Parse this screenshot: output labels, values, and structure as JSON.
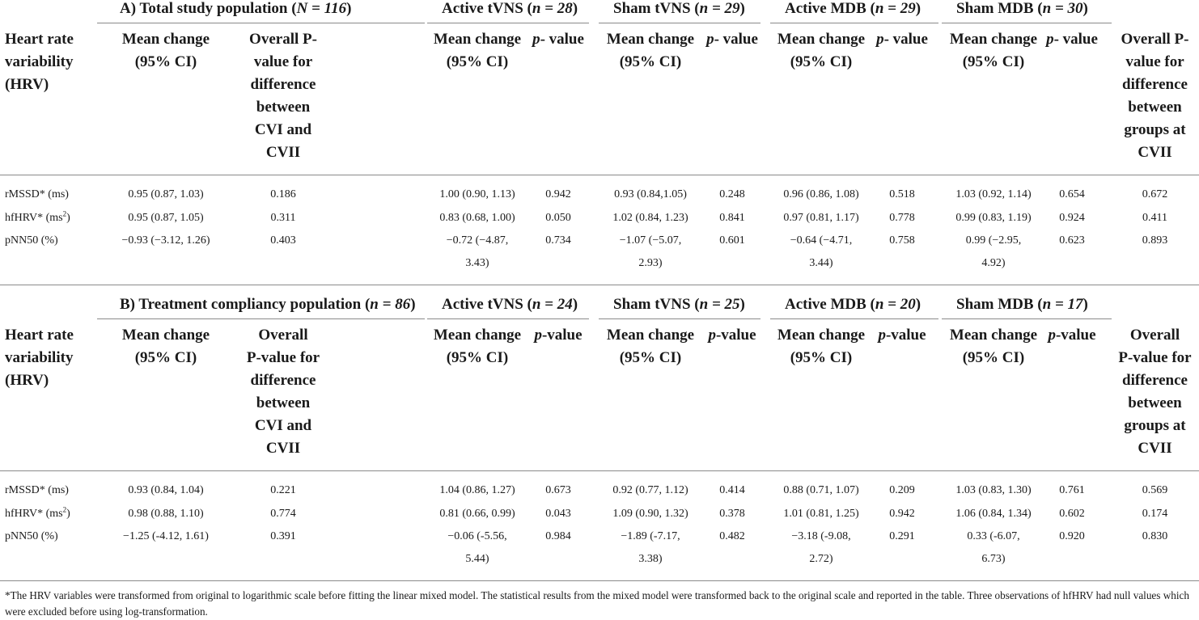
{
  "sectionA": {
    "title": "A) Total study population (",
    "title_n": "N = 116",
    "groups": [
      {
        "name": "Active tVNS (",
        "n": "n = 28"
      },
      {
        "name": "Sham tVNS (",
        "n": "n = 29"
      },
      {
        "name": "Active MDB (",
        "n": "n = 29"
      },
      {
        "name": "Sham MDB (",
        "n": "n = 30"
      }
    ],
    "header": {
      "hrv": [
        "Heart rate",
        "variability",
        "(HRV)"
      ],
      "mean_change": [
        "Mean change",
        "(95% CI)"
      ],
      "overall_p": [
        "Overall P-",
        "value for",
        "difference",
        "between",
        "CVI and",
        "CVII"
      ],
      "p_label": "p- value",
      "final": [
        "Overall P-",
        "value for",
        "difference",
        "between",
        "groups at",
        "CVII"
      ]
    },
    "rows": [
      {
        "label": "rMSSD* (ms)",
        "total": "0.95 (0.87, 1.03)",
        "total_p": "0.186",
        "g": [
          [
            "1.00 (0.90, 1.13)",
            "0.942"
          ],
          [
            "0.93 (0.84,1.05)",
            "0.248"
          ],
          [
            "0.96 (0.86, 1.08)",
            "0.518"
          ],
          [
            "1.03 (0.92, 1.14)",
            "0.654"
          ]
        ],
        "overall": "0.672"
      },
      {
        "label": "hfHRV* (ms",
        "total": "0.95 (0.87, 1.05)",
        "total_p": "0.311",
        "g": [
          [
            "0.83 (0.68, 1.00)",
            "0.050"
          ],
          [
            "1.02 (0.84, 1.23)",
            "0.841"
          ],
          [
            "0.97 (0.81, 1.17)",
            "0.778"
          ],
          [
            "0.99 (0.83, 1.19)",
            "0.924"
          ]
        ],
        "overall": "0.411"
      },
      {
        "label": "pNN50 (%)",
        "total": "−0.93 (−3.12, 1.26)",
        "total_p": "0.403",
        "g": [
          [
            "−0.72 (−4.87,",
            "3.43)",
            "0.734"
          ],
          [
            "−1.07 (−5.07,",
            "2.93)",
            "0.601"
          ],
          [
            "−0.64 (−4.71,",
            "3.44)",
            "0.758"
          ],
          [
            "0.99 (−2.95,",
            "4.92)",
            "0.623"
          ]
        ],
        "overall": "0.893"
      }
    ]
  },
  "sectionB": {
    "title": "B) Treatment compliancy population (",
    "title_n": "n = 86",
    "groups": [
      {
        "name": "Active tVNS (",
        "n": "n = 24"
      },
      {
        "name": "Sham tVNS (",
        "n": "n = 25"
      },
      {
        "name": "Active MDB (",
        "n": "n = 20"
      },
      {
        "name": "Sham MDB (",
        "n": "n = 17"
      }
    ],
    "header": {
      "hrv": [
        "Heart rate",
        "variability",
        "(HRV)"
      ],
      "mean_change": [
        "Mean change",
        "(95% CI)"
      ],
      "overall_p": [
        "Overall",
        "P-value for",
        "difference",
        "between",
        "CVI and",
        "CVII"
      ],
      "p_label": "p-value",
      "final": [
        "Overall",
        "P-value for",
        "difference",
        "between",
        "groups at",
        "CVII"
      ]
    },
    "rows": [
      {
        "label": "rMSSD* (ms)",
        "total": "0.93 (0.84, 1.04)",
        "total_p": "0.221",
        "g": [
          [
            "1.04 (0.86, 1.27)",
            "0.673"
          ],
          [
            "0.92 (0.77, 1.12)",
            "0.414"
          ],
          [
            "0.88 (0.71, 1.07)",
            "0.209"
          ],
          [
            "1.03 (0.83, 1.30)",
            "0.761"
          ]
        ],
        "overall": "0.569"
      },
      {
        "label": "hfHRV* (ms",
        "total": "0.98 (0.88, 1.10)",
        "total_p": "0.774",
        "g": [
          [
            "0.81 (0.66, 0.99)",
            "0.043"
          ],
          [
            "1.09 (0.90, 1.32)",
            "0.378"
          ],
          [
            "1.01 (0.81, 1.25)",
            "0.942"
          ],
          [
            "1.06 (0.84, 1.34)",
            "0.602"
          ]
        ],
        "overall": "0.174"
      },
      {
        "label": "pNN50 (%)",
        "total": "−1.25 (-4.12, 1.61)",
        "total_p": "0.391",
        "g": [
          [
            "−0.06 (-5.56,",
            "5.44)",
            "0.984"
          ],
          [
            "−1.89 (-7.17,",
            "3.38)",
            "0.482"
          ],
          [
            "−3.18 (-9.08,",
            "2.72)",
            "0.291"
          ],
          [
            "0.33 (-6.07,",
            "6.73)",
            "0.920"
          ]
        ],
        "overall": "0.830"
      }
    ]
  },
  "ms2_sup": "2",
  "ms2_close": ")",
  "footnote": "*The HRV variables were transformed from original to logarithmic scale before fitting the linear mixed model. The statistical results from the mixed model were transformed back to the original scale and reported in the table. Three observations of hfHRV had null values which were excluded before using log-transformation."
}
